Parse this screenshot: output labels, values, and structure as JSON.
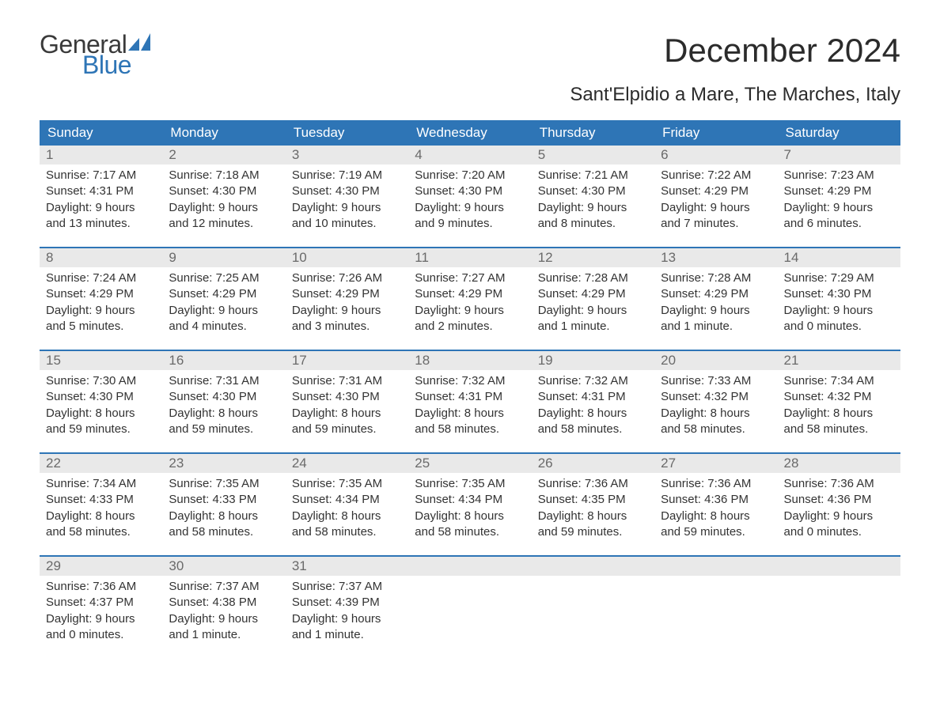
{
  "logo": {
    "general": "General",
    "blue": "Blue",
    "icon_color": "#2e75b6"
  },
  "title": "December 2024",
  "subtitle": "Sant'Elpidio a Mare, The Marches, Italy",
  "colors": {
    "header_bg": "#2e75b6",
    "header_text": "#ffffff",
    "daynum_bg": "#e9e9e9",
    "daynum_text": "#6a6a6a",
    "body_text": "#333333",
    "border": "#2e75b6",
    "page_bg": "#ffffff"
  },
  "fonts": {
    "title_size": 42,
    "subtitle_size": 24,
    "weekday_size": 17,
    "body_size": 15
  },
  "weekdays": [
    "Sunday",
    "Monday",
    "Tuesday",
    "Wednesday",
    "Thursday",
    "Friday",
    "Saturday"
  ],
  "weeks": [
    [
      {
        "n": "1",
        "sunrise": "Sunrise: 7:17 AM",
        "sunset": "Sunset: 4:31 PM",
        "d1": "Daylight: 9 hours",
        "d2": "and 13 minutes."
      },
      {
        "n": "2",
        "sunrise": "Sunrise: 7:18 AM",
        "sunset": "Sunset: 4:30 PM",
        "d1": "Daylight: 9 hours",
        "d2": "and 12 minutes."
      },
      {
        "n": "3",
        "sunrise": "Sunrise: 7:19 AM",
        "sunset": "Sunset: 4:30 PM",
        "d1": "Daylight: 9 hours",
        "d2": "and 10 minutes."
      },
      {
        "n": "4",
        "sunrise": "Sunrise: 7:20 AM",
        "sunset": "Sunset: 4:30 PM",
        "d1": "Daylight: 9 hours",
        "d2": "and 9 minutes."
      },
      {
        "n": "5",
        "sunrise": "Sunrise: 7:21 AM",
        "sunset": "Sunset: 4:30 PM",
        "d1": "Daylight: 9 hours",
        "d2": "and 8 minutes."
      },
      {
        "n": "6",
        "sunrise": "Sunrise: 7:22 AM",
        "sunset": "Sunset: 4:29 PM",
        "d1": "Daylight: 9 hours",
        "d2": "and 7 minutes."
      },
      {
        "n": "7",
        "sunrise": "Sunrise: 7:23 AM",
        "sunset": "Sunset: 4:29 PM",
        "d1": "Daylight: 9 hours",
        "d2": "and 6 minutes."
      }
    ],
    [
      {
        "n": "8",
        "sunrise": "Sunrise: 7:24 AM",
        "sunset": "Sunset: 4:29 PM",
        "d1": "Daylight: 9 hours",
        "d2": "and 5 minutes."
      },
      {
        "n": "9",
        "sunrise": "Sunrise: 7:25 AM",
        "sunset": "Sunset: 4:29 PM",
        "d1": "Daylight: 9 hours",
        "d2": "and 4 minutes."
      },
      {
        "n": "10",
        "sunrise": "Sunrise: 7:26 AM",
        "sunset": "Sunset: 4:29 PM",
        "d1": "Daylight: 9 hours",
        "d2": "and 3 minutes."
      },
      {
        "n": "11",
        "sunrise": "Sunrise: 7:27 AM",
        "sunset": "Sunset: 4:29 PM",
        "d1": "Daylight: 9 hours",
        "d2": "and 2 minutes."
      },
      {
        "n": "12",
        "sunrise": "Sunrise: 7:28 AM",
        "sunset": "Sunset: 4:29 PM",
        "d1": "Daylight: 9 hours",
        "d2": "and 1 minute."
      },
      {
        "n": "13",
        "sunrise": "Sunrise: 7:28 AM",
        "sunset": "Sunset: 4:29 PM",
        "d1": "Daylight: 9 hours",
        "d2": "and 1 minute."
      },
      {
        "n": "14",
        "sunrise": "Sunrise: 7:29 AM",
        "sunset": "Sunset: 4:30 PM",
        "d1": "Daylight: 9 hours",
        "d2": "and 0 minutes."
      }
    ],
    [
      {
        "n": "15",
        "sunrise": "Sunrise: 7:30 AM",
        "sunset": "Sunset: 4:30 PM",
        "d1": "Daylight: 8 hours",
        "d2": "and 59 minutes."
      },
      {
        "n": "16",
        "sunrise": "Sunrise: 7:31 AM",
        "sunset": "Sunset: 4:30 PM",
        "d1": "Daylight: 8 hours",
        "d2": "and 59 minutes."
      },
      {
        "n": "17",
        "sunrise": "Sunrise: 7:31 AM",
        "sunset": "Sunset: 4:30 PM",
        "d1": "Daylight: 8 hours",
        "d2": "and 59 minutes."
      },
      {
        "n": "18",
        "sunrise": "Sunrise: 7:32 AM",
        "sunset": "Sunset: 4:31 PM",
        "d1": "Daylight: 8 hours",
        "d2": "and 58 minutes."
      },
      {
        "n": "19",
        "sunrise": "Sunrise: 7:32 AM",
        "sunset": "Sunset: 4:31 PM",
        "d1": "Daylight: 8 hours",
        "d2": "and 58 minutes."
      },
      {
        "n": "20",
        "sunrise": "Sunrise: 7:33 AM",
        "sunset": "Sunset: 4:32 PM",
        "d1": "Daylight: 8 hours",
        "d2": "and 58 minutes."
      },
      {
        "n": "21",
        "sunrise": "Sunrise: 7:34 AM",
        "sunset": "Sunset: 4:32 PM",
        "d1": "Daylight: 8 hours",
        "d2": "and 58 minutes."
      }
    ],
    [
      {
        "n": "22",
        "sunrise": "Sunrise: 7:34 AM",
        "sunset": "Sunset: 4:33 PM",
        "d1": "Daylight: 8 hours",
        "d2": "and 58 minutes."
      },
      {
        "n": "23",
        "sunrise": "Sunrise: 7:35 AM",
        "sunset": "Sunset: 4:33 PM",
        "d1": "Daylight: 8 hours",
        "d2": "and 58 minutes."
      },
      {
        "n": "24",
        "sunrise": "Sunrise: 7:35 AM",
        "sunset": "Sunset: 4:34 PM",
        "d1": "Daylight: 8 hours",
        "d2": "and 58 minutes."
      },
      {
        "n": "25",
        "sunrise": "Sunrise: 7:35 AM",
        "sunset": "Sunset: 4:34 PM",
        "d1": "Daylight: 8 hours",
        "d2": "and 58 minutes."
      },
      {
        "n": "26",
        "sunrise": "Sunrise: 7:36 AM",
        "sunset": "Sunset: 4:35 PM",
        "d1": "Daylight: 8 hours",
        "d2": "and 59 minutes."
      },
      {
        "n": "27",
        "sunrise": "Sunrise: 7:36 AM",
        "sunset": "Sunset: 4:36 PM",
        "d1": "Daylight: 8 hours",
        "d2": "and 59 minutes."
      },
      {
        "n": "28",
        "sunrise": "Sunrise: 7:36 AM",
        "sunset": "Sunset: 4:36 PM",
        "d1": "Daylight: 9 hours",
        "d2": "and 0 minutes."
      }
    ],
    [
      {
        "n": "29",
        "sunrise": "Sunrise: 7:36 AM",
        "sunset": "Sunset: 4:37 PM",
        "d1": "Daylight: 9 hours",
        "d2": "and 0 minutes."
      },
      {
        "n": "30",
        "sunrise": "Sunrise: 7:37 AM",
        "sunset": "Sunset: 4:38 PM",
        "d1": "Daylight: 9 hours",
        "d2": "and 1 minute."
      },
      {
        "n": "31",
        "sunrise": "Sunrise: 7:37 AM",
        "sunset": "Sunset: 4:39 PM",
        "d1": "Daylight: 9 hours",
        "d2": "and 1 minute."
      },
      {
        "n": "",
        "sunrise": "",
        "sunset": "",
        "d1": "",
        "d2": ""
      },
      {
        "n": "",
        "sunrise": "",
        "sunset": "",
        "d1": "",
        "d2": ""
      },
      {
        "n": "",
        "sunrise": "",
        "sunset": "",
        "d1": "",
        "d2": ""
      },
      {
        "n": "",
        "sunrise": "",
        "sunset": "",
        "d1": "",
        "d2": ""
      }
    ]
  ]
}
